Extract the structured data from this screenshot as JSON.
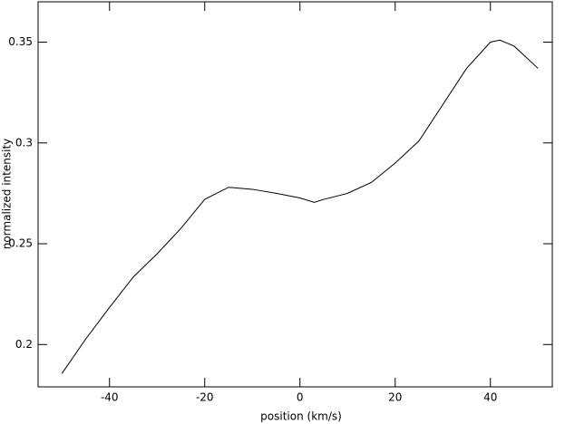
{
  "chart_data": {
    "type": "line",
    "xlabel": "position (km/s)",
    "ylabel": "normalized intensity",
    "x": [
      -50,
      -45,
      -40,
      -35,
      -30,
      -25,
      -20,
      -15,
      -10,
      -5,
      0,
      3,
      5,
      10,
      15,
      20,
      25,
      30,
      35,
      40,
      42,
      45,
      50
    ],
    "values": [
      0.1856,
      0.2027,
      0.2184,
      0.2335,
      0.245,
      0.2576,
      0.272,
      0.278,
      0.277,
      0.275,
      0.2727,
      0.2705,
      0.272,
      0.275,
      0.2804,
      0.29,
      0.301,
      0.319,
      0.337,
      0.35,
      0.351,
      0.348,
      0.337
    ],
    "color": "#000000",
    "xlim": [
      -55,
      53
    ],
    "ylim": [
      0.179,
      0.37
    ],
    "xticks": [
      -40,
      -20,
      0,
      20,
      40
    ],
    "yticks": [
      0.2,
      0.25,
      0.3,
      0.35
    ]
  }
}
